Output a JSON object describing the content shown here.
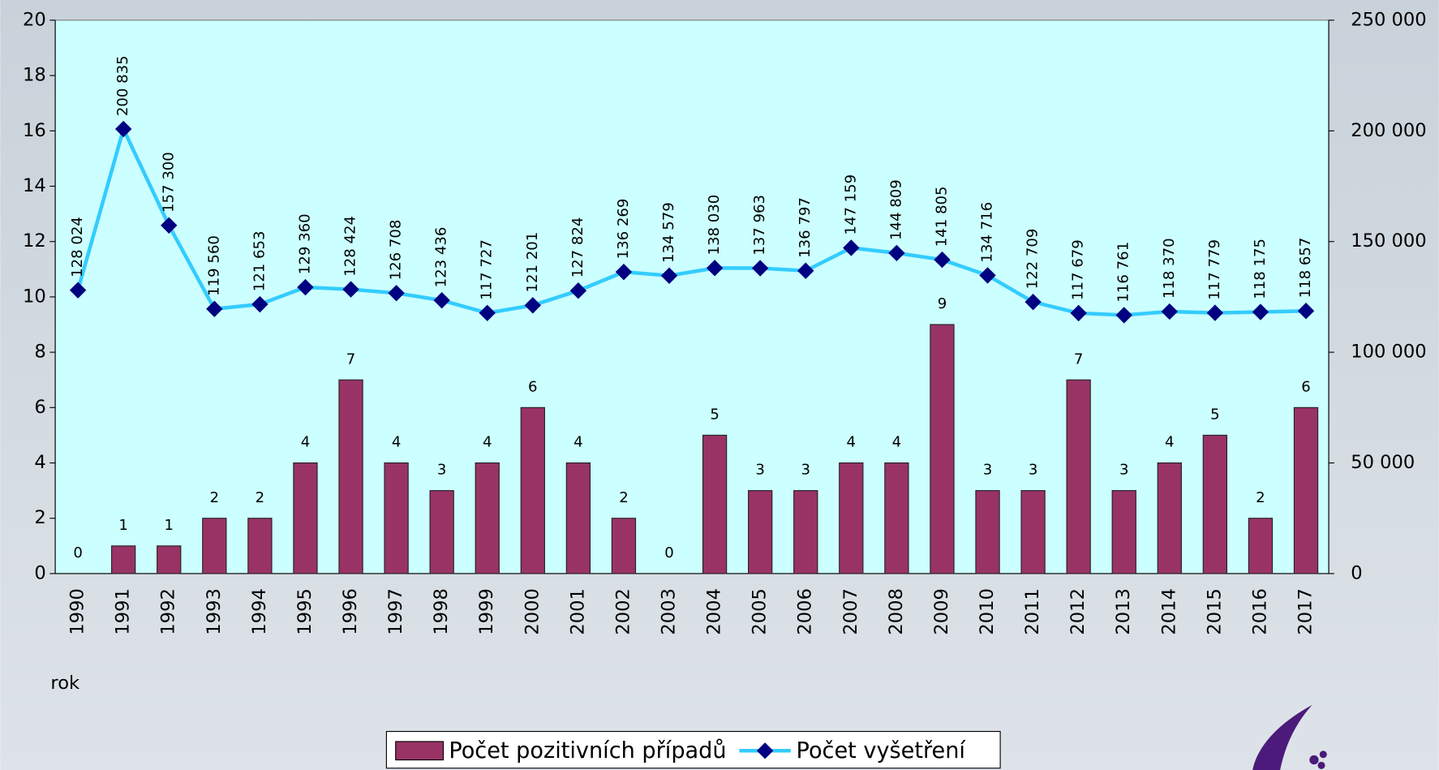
{
  "chart_data": {
    "type": "bar",
    "x_label": "rok",
    "categories": [
      "1990",
      "1991",
      "1992",
      "1993",
      "1994",
      "1995",
      "1996",
      "1997",
      "1998",
      "1999",
      "2000",
      "2001",
      "2002",
      "2003",
      "2004",
      "2005",
      "2006",
      "2007",
      "2008",
      "2009",
      "2010",
      "2011",
      "2012",
      "2013",
      "2014",
      "2015",
      "2016",
      "2017"
    ],
    "series": [
      {
        "name": "Počet pozitivních případů",
        "type": "bar",
        "color": "#993366",
        "values": [
          0,
          1,
          1,
          2,
          2,
          4,
          7,
          4,
          3,
          4,
          6,
          4,
          2,
          0,
          5,
          3,
          3,
          4,
          4,
          9,
          3,
          3,
          7,
          3,
          4,
          5,
          2,
          6
        ]
      },
      {
        "name": "Počet vyšetření",
        "type": "line",
        "axis": "y2",
        "color": "#33ccff",
        "marker_color": "#000080",
        "values": [
          128024,
          200835,
          157300,
          119560,
          121653,
          129360,
          128424,
          126708,
          123436,
          117727,
          121201,
          127824,
          136269,
          134579,
          138030,
          137963,
          136797,
          147159,
          144809,
          141805,
          134716,
          122709,
          117679,
          116761,
          118370,
          117779,
          118175,
          118657
        ],
        "value_labels": [
          "128 024",
          "200 835",
          "157 300",
          "119 560",
          "121 653",
          "129 360",
          "128 424",
          "126 708",
          "123 436",
          "117 727",
          "121 201",
          "127 824",
          "136 269",
          "134 579",
          "138 030",
          "137 963",
          "136 797",
          "147 159",
          "144 809",
          "141 805",
          "134 716",
          "122 709",
          "117 679",
          "116 761",
          "118 370",
          "117 779",
          "118 175",
          "118 657"
        ]
      }
    ],
    "ylim": [
      0,
      20
    ],
    "yticks": [
      0,
      2,
      4,
      6,
      8,
      10,
      12,
      14,
      16,
      18,
      20
    ],
    "y2lim": [
      0,
      250000
    ],
    "y2ticks": [
      0,
      {
        "value": 50000,
        "label": "50 000"
      },
      {
        "value": 100000,
        "label": "100 000"
      },
      {
        "value": 150000,
        "label": "150 000"
      },
      {
        "value": 200000,
        "label": "200 000"
      },
      {
        "value": 250000,
        "label": "250 000"
      }
    ],
    "legend": "bottom",
    "plot_background": "#ccffff"
  }
}
